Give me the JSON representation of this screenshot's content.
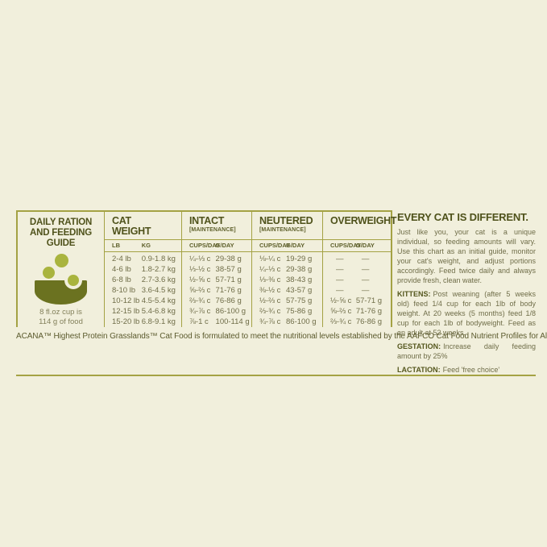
{
  "page": {
    "colors": {
      "background": "#F1EFDC",
      "rule_olive": "#A4A244",
      "heading_olive": "#4F521B",
      "body_olive": "#6F6D48",
      "bowl_dark_green": "#6B7220",
      "kibble_green": "#A9B43E"
    }
  },
  "guide": {
    "title_line1": "DAILY RATION",
    "title_line2": "AND FEEDING GUIDE",
    "caption_line1": "8 fl.oz cup is",
    "caption_line2": "114 g of food"
  },
  "table": {
    "sections": {
      "cat_weight": {
        "title_line1": "CAT",
        "title_line2": "WEIGHT",
        "col1": "LB",
        "col2": "KG"
      },
      "intact": {
        "title": "INTACT",
        "subtitle": "[MAINTENANCE]",
        "col1": "CUPS/DAY",
        "col2": "G/DAY"
      },
      "neutered": {
        "title": "NEUTERED",
        "subtitle": "[MAINTENANCE]",
        "col1": "CUPS/DAY",
        "col2": "G/DAY"
      },
      "overweight": {
        "title": "OVERWEIGHT",
        "col1": "CUPS/DAY",
        "col2": "G/DAY"
      }
    },
    "rows": [
      {
        "lb": "2-4 lb",
        "kg": "0.9-1.8 kg",
        "intact_cups": "¼-⅓ c",
        "intact_g": "29-38 g",
        "neutered_cups": "⅛-¼ c",
        "neutered_g": "19-29 g",
        "over_cups": "—",
        "over_g": "—"
      },
      {
        "lb": "4-6 lb",
        "kg": "1.8-2.7 kg",
        "intact_cups": "⅓-½ c",
        "intact_g": "38-57 g",
        "neutered_cups": "¼-⅓ c",
        "neutered_g": "29-38 g",
        "over_cups": "—",
        "over_g": "—"
      },
      {
        "lb": "6-8 lb",
        "kg": "2.7-3.6 kg",
        "intact_cups": "½-⅝ c",
        "intact_g": "57-71 g",
        "neutered_cups": "⅓-⅜ c",
        "neutered_g": "38-43 g",
        "over_cups": "—",
        "over_g": "—"
      },
      {
        "lb": "8-10 lb",
        "kg": "3.6-4.5 kg",
        "intact_cups": "⅝-⅔ c",
        "intact_g": "71-76 g",
        "neutered_cups": "⅜-½ c",
        "neutered_g": "43-57 g",
        "over_cups": "—",
        "over_g": "—"
      },
      {
        "lb": "10-12 lb",
        "kg": "4.5-5.4 kg",
        "intact_cups": "⅔-¾ c",
        "intact_g": "76-86 g",
        "neutered_cups": "½-⅔ c",
        "neutered_g": "57-75 g",
        "over_cups": "½-⅝ c",
        "over_g": "57-71 g"
      },
      {
        "lb": "12-15 lb",
        "kg": "5.4-6.8 kg",
        "intact_cups": "¾-⅞ c",
        "intact_g": "86-100 g",
        "neutered_cups": "⅔-¾ c",
        "neutered_g": "75-86 g",
        "over_cups": "⅝-⅔ c",
        "over_g": "71-76 g"
      },
      {
        "lb": "15-20 lb",
        "kg": "6.8-9.1 kg",
        "intact_cups": "⅞-1 c",
        "intact_g": "100-114 g",
        "neutered_cups": "¾-⅞ c",
        "neutered_g": "86-100 g",
        "over_cups": "⅔-¾ c",
        "over_g": "76-86 g"
      }
    ]
  },
  "notes": {
    "heading": "EVERY CAT IS DIFFERENT.",
    "intro": "Just like you, your cat is a unique individual, so feeding amounts will vary. Use this chart as an initial guide, monitor your cat's weight, and adjust portions accordingly. Feed twice daily and always provide fresh, clean water.",
    "kittens_label": "KITTENS:",
    "kittens_text": "Post weaning (after 5 weeks old) feed 1/4 cup for each 1lb of body weight. At 20 weeks (5 months) feed 1/8 cup for each 1lb of bodyweight. Feed as an adult at 52 weeks.",
    "gestation_label": "GESTATION:",
    "gestation_text": "Increase daily feeding amount by 25%",
    "lactation_label": "LACTATION:",
    "lactation_text": "Feed 'free choice'"
  },
  "footer": {
    "text": "ACANA™ Highest Protein Grasslands™ Cat Food is formulated to meet the nutritional levels established by the AAFCO Cat Food Nutrient Profiles for All Life Stages."
  }
}
